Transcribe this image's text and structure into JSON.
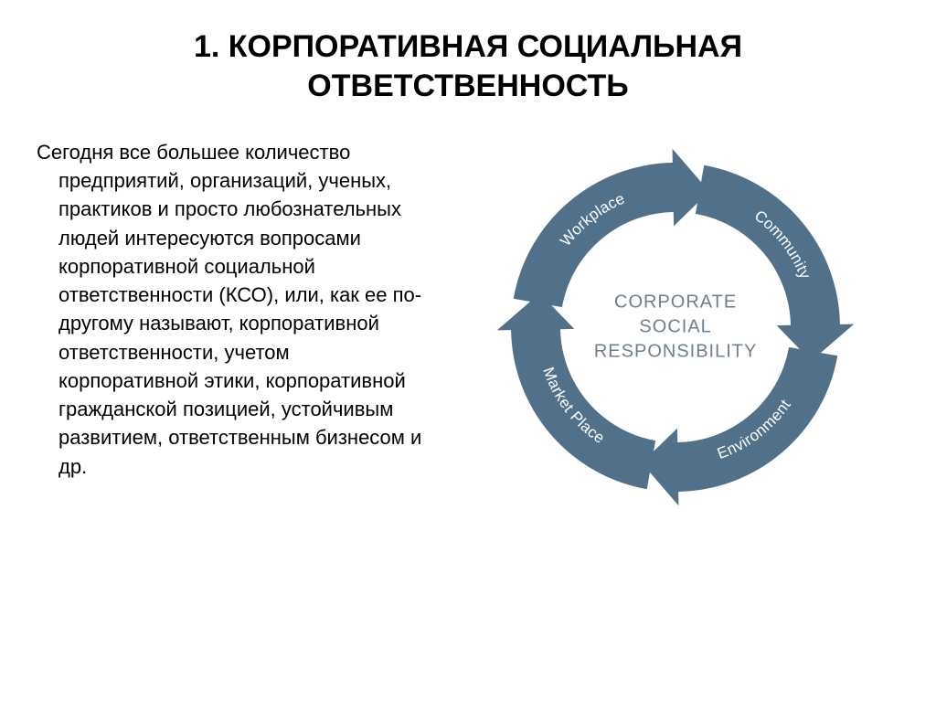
{
  "title": "1. КОРПОРАТИВНАЯ СОЦИАЛЬНАЯ ОТВЕТСТВЕННОСТЬ",
  "paragraph": "Сегодня все большее количество предприятий, организаций, ученых, практиков и просто любознательных людей интересуются вопросами корпоративной социальной ответственности (КСО), или, как ее по-другому называют, корпоративной ответственности, учетом корпоративной этики, корпоративной гражданской позицией, устойчивым развитием, ответственным бизнесом и др.",
  "diagram": {
    "type": "circular-arrow-cycle",
    "center_line1": "CORPORATE",
    "center_line2": "SOCIAL",
    "center_line3": "RESPONSIBILITY",
    "center_color": "#707f8d",
    "segments": [
      {
        "label": "Community",
        "start_deg": -80,
        "end_deg": 5
      },
      {
        "label": "Environment",
        "start_deg": 10,
        "end_deg": 95
      },
      {
        "label": "Market Place",
        "start_deg": 100,
        "end_deg": 185
      },
      {
        "label": "Workplace",
        "start_deg": 190,
        "end_deg": 275
      }
    ],
    "arc_color": "#51718a",
    "arc_outer_radius": 180,
    "arc_inner_radius": 126,
    "arrowhead_extent": 34,
    "text_radius": 153,
    "label_color": "#ffffff",
    "label_fontsize": 17,
    "background_color": "#ffffff",
    "svg_size": 430,
    "svg_center": 215
  }
}
